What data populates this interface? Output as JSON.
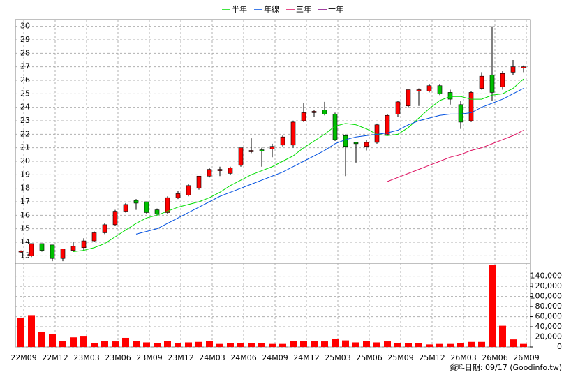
{
  "chart_data": {
    "type": "candlestick",
    "categories": [
      "22M09",
      null,
      null,
      "22M12",
      null,
      null,
      "23M03",
      null,
      null,
      "23M06",
      null,
      null,
      "23M09",
      null,
      null,
      "23M12",
      null,
      null,
      "24M03",
      null,
      null,
      "24M06",
      null,
      null,
      "24M09",
      null,
      null,
      "24M12",
      null,
      null,
      "25M03",
      null,
      null,
      "25M06",
      null,
      null,
      "25M09",
      null,
      null,
      "25M12",
      null,
      null,
      "26M03",
      null,
      null,
      "26M06",
      null,
      null,
      "26M09"
    ],
    "open": [
      13.3,
      13.0,
      13.9,
      13.8,
      12.8,
      13.4,
      13.6,
      14.1,
      14.7,
      15.3,
      16.3,
      17.1,
      17.0,
      16.4,
      16.2,
      17.3,
      17.5,
      18.0,
      18.9,
      19.3,
      19.1,
      19.7,
      20.7,
      20.85,
      20.9,
      21.2,
      21.2,
      23.0,
      23.6,
      23.8,
      23.5,
      21.9,
      21.4,
      21.1,
      21.4,
      22.0,
      23.5,
      24.1,
      25.2,
      25.2,
      25.6,
      25.1,
      24.2,
      23.0,
      25.4,
      26.4,
      25.5,
      26.6,
      26.9
    ],
    "high": [
      13.4,
      13.9,
      13.9,
      13.8,
      13.5,
      14.0,
      14.3,
      14.8,
      15.4,
      16.4,
      16.9,
      17.2,
      17.0,
      16.5,
      17.4,
      17.8,
      18.3,
      18.9,
      19.5,
      19.6,
      19.6,
      21.0,
      21.7,
      21.0,
      21.3,
      21.9,
      23.0,
      24.3,
      23.8,
      24.4,
      23.6,
      22.0,
      21.4,
      21.6,
      22.8,
      23.5,
      24.5,
      25.3,
      25.4,
      25.7,
      25.7,
      25.3,
      24.5,
      25.2,
      26.6,
      30.0,
      26.7,
      27.5,
      27.1
    ],
    "low": [
      13.2,
      12.9,
      13.3,
      12.6,
      12.6,
      13.3,
      13.4,
      14.0,
      14.6,
      15.2,
      16.2,
      16.4,
      16.1,
      16.0,
      16.1,
      17.2,
      17.4,
      17.9,
      18.8,
      18.9,
      19.0,
      19.6,
      20.6,
      19.6,
      20.3,
      21.1,
      21.0,
      22.9,
      23.3,
      23.4,
      21.5,
      18.9,
      19.9,
      20.8,
      21.3,
      21.9,
      23.3,
      24.0,
      24.1,
      25.1,
      24.9,
      24.2,
      22.4,
      22.9,
      25.3,
      24.5,
      25.3,
      26.4,
      26.6
    ],
    "close": [
      13.35,
      13.9,
      13.4,
      12.8,
      13.5,
      13.7,
      14.1,
      14.7,
      15.3,
      16.3,
      16.8,
      16.9,
      16.2,
      16.1,
      17.3,
      17.6,
      18.2,
      18.9,
      19.4,
      19.4,
      19.5,
      21.0,
      20.8,
      20.75,
      21.1,
      21.8,
      22.9,
      23.6,
      23.7,
      23.5,
      21.6,
      21.1,
      21.3,
      21.4,
      22.7,
      23.4,
      24.4,
      25.3,
      25.3,
      25.6,
      25.0,
      24.6,
      22.9,
      25.1,
      26.3,
      25.1,
      26.5,
      27.0,
      27.0
    ],
    "up_color": "#ff0000",
    "down_color": "#00c000",
    "series": [
      {
        "name": "半年",
        "color": "#00dd00",
        "values": [
          null,
          null,
          null,
          null,
          null,
          13.3,
          13.4,
          13.6,
          13.9,
          14.4,
          14.9,
          15.4,
          15.8,
          16.0,
          16.3,
          16.6,
          16.8,
          17.0,
          17.3,
          17.7,
          18.2,
          18.6,
          19.0,
          19.3,
          19.6,
          20.0,
          20.4,
          21.0,
          21.5,
          22.0,
          22.6,
          22.8,
          22.7,
          22.4,
          22.0,
          21.9,
          22.0,
          22.5,
          23.2,
          23.9,
          24.5,
          24.8,
          24.8,
          24.6,
          24.6,
          24.9,
          25.0,
          25.4,
          26.1
        ]
      },
      {
        "name": "年線",
        "color": "#0050e0",
        "values": [
          null,
          null,
          null,
          null,
          null,
          null,
          null,
          null,
          null,
          null,
          null,
          14.6,
          14.8,
          15.0,
          15.4,
          15.8,
          16.2,
          16.6,
          17.0,
          17.4,
          17.7,
          18.0,
          18.3,
          18.6,
          18.9,
          19.2,
          19.6,
          20.0,
          20.4,
          20.8,
          21.3,
          21.6,
          21.8,
          21.9,
          22.0,
          22.1,
          22.3,
          22.7,
          23.0,
          23.2,
          23.4,
          23.5,
          23.5,
          23.6,
          24.0,
          24.3,
          24.6,
          25.0,
          25.4
        ]
      },
      {
        "name": "三年",
        "color": "#dd1060",
        "values": [
          null,
          null,
          null,
          null,
          null,
          null,
          null,
          null,
          null,
          null,
          null,
          null,
          null,
          null,
          null,
          null,
          null,
          null,
          null,
          null,
          null,
          null,
          null,
          null,
          null,
          null,
          null,
          null,
          null,
          null,
          null,
          null,
          null,
          null,
          null,
          18.5,
          18.8,
          19.1,
          19.4,
          19.7,
          20.0,
          20.3,
          20.5,
          20.8,
          21.0,
          21.3,
          21.6,
          21.9,
          22.3
        ]
      },
      {
        "name": "十年",
        "color": "#800080",
        "values": [
          null,
          null,
          null,
          null,
          null,
          null,
          null,
          null,
          null,
          null,
          null,
          null,
          null,
          null,
          null,
          null,
          null,
          null,
          null,
          null,
          null,
          null,
          null,
          null,
          null,
          null,
          null,
          null,
          null,
          null,
          null,
          null,
          null,
          null,
          null,
          null,
          null,
          null,
          null,
          null,
          null,
          null,
          null,
          null,
          null,
          null,
          null,
          null,
          null
        ]
      }
    ],
    "ylim": [
      12.5,
      30.5
    ],
    "yticks": [
      13,
      14,
      15,
      16,
      17,
      18,
      19,
      20,
      21,
      22,
      23,
      24,
      25,
      26,
      27,
      28,
      29,
      30
    ],
    "grid": true,
    "volume": {
      "values": [
        57500,
        63000,
        30000,
        25000,
        12000,
        19000,
        22000,
        8000,
        12000,
        11000,
        18000,
        12000,
        9000,
        8000,
        12000,
        7000,
        9000,
        10000,
        12000,
        6000,
        7000,
        8000,
        7000,
        7000,
        6000,
        6000,
        12000,
        12000,
        12000,
        11000,
        16000,
        13000,
        9000,
        12000,
        9000,
        11000,
        7000,
        8000,
        8000,
        5000,
        6000,
        6000,
        7000,
        10000,
        10000,
        161600,
        42000,
        15000,
        6000
      ],
      "color": "#ff0000",
      "ylim": [
        0,
        163000
      ],
      "yticks": [
        0,
        {
          "value": 20000,
          "label": "20,000"
        },
        {
          "value": 40000,
          "label": "40,000"
        },
        {
          "value": 60000,
          "label": "60,000"
        },
        {
          "value": 80000,
          "label": "80,000"
        },
        {
          "value": 100000,
          "label": "100,000"
        },
        {
          "value": 120000,
          "label": "120,000"
        },
        {
          "value": 140000,
          "label": "140,000"
        }
      ]
    },
    "footer": "資料日期: 09/17 (Goodinfo.tw)"
  }
}
